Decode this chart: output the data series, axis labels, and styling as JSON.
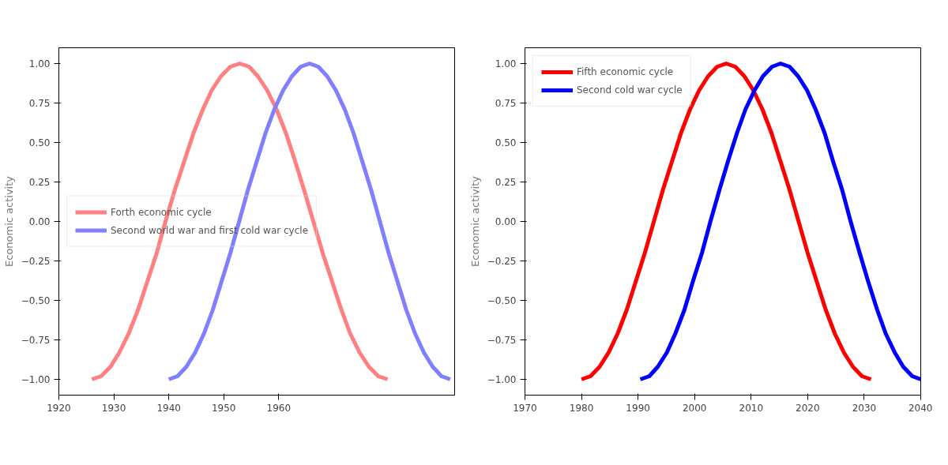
{
  "chart_data": [
    {
      "type": "line",
      "ylabel": "Economic activity",
      "xlim": [
        1920,
        1992
      ],
      "xticks": [
        1920,
        1930,
        1940,
        1950,
        1960
      ],
      "ylim": [
        -1.1,
        1.1
      ],
      "yticks": [
        {
          "value": -1,
          "label": "−1.00"
        },
        {
          "value": -0.75,
          "label": "−0.75"
        },
        {
          "value": -0.5,
          "label": "−0.50"
        },
        {
          "value": -0.25,
          "label": "−0.25"
        },
        {
          "value": 0,
          "label": "0.00"
        },
        {
          "value": 0.25,
          "label": "0.25"
        },
        {
          "value": 0.5,
          "label": "0.50"
        },
        {
          "value": 0.75,
          "label": "0.75"
        },
        {
          "value": 1,
          "label": "1.00"
        }
      ],
      "grid": false,
      "legend": "left",
      "series": [
        {
          "name": "Forth economic cycle",
          "color": "#ff8080",
          "x": [
            1926,
            1927.7,
            1929.4,
            1931,
            1932.7,
            1934.4,
            1936.1,
            1937.8,
            1939.4,
            1941.1,
            1942.8,
            1944.5,
            1946.2,
            1947.8,
            1949.5,
            1951.2,
            1952.9,
            1954.6,
            1956.2,
            1957.9,
            1959.6,
            1961.3,
            1963,
            1964.6,
            1966.3,
            1968,
            1969.7,
            1971.4,
            1973,
            1974.7,
            1976.4,
            1978.1,
            1979.8
          ],
          "values": [
            -1,
            -0.98,
            -0.92,
            -0.83,
            -0.71,
            -0.56,
            -0.38,
            -0.2,
            0,
            0.2,
            0.38,
            0.56,
            0.71,
            0.83,
            0.92,
            0.98,
            1,
            0.98,
            0.92,
            0.83,
            0.71,
            0.56,
            0.38,
            0.2,
            0,
            -0.2,
            -0.38,
            -0.56,
            -0.71,
            -0.83,
            -0.92,
            -0.98,
            -1
          ]
        },
        {
          "name": "Second world war and first cold war cycle",
          "color": "#8080ff",
          "x": [
            1940,
            1941.6,
            1943.2,
            1944.8,
            1946.4,
            1948,
            1949.6,
            1951.2,
            1952.8,
            1954.4,
            1956,
            1957.6,
            1959.2,
            1960.8,
            1962.4,
            1964,
            1965.6,
            1967.2,
            1968.8,
            1970.4,
            1972,
            1973.6,
            1975.2,
            1976.8,
            1978.4,
            1980,
            1981.6,
            1983.2,
            1984.8,
            1986.4,
            1988,
            1989.6,
            1991.2
          ],
          "values": [
            -1,
            -0.98,
            -0.92,
            -0.83,
            -0.71,
            -0.56,
            -0.38,
            -0.2,
            0,
            0.2,
            0.38,
            0.56,
            0.71,
            0.83,
            0.92,
            0.98,
            1,
            0.98,
            0.92,
            0.83,
            0.71,
            0.56,
            0.38,
            0.2,
            0,
            -0.2,
            -0.38,
            -0.56,
            -0.71,
            -0.83,
            -0.92,
            -0.98,
            -1
          ]
        }
      ]
    },
    {
      "type": "line",
      "ylabel": "Economic activity",
      "xlim": [
        1970,
        2040
      ],
      "xticks": [
        1970,
        1980,
        1990,
        2000,
        2010,
        2020,
        2030,
        2040
      ],
      "ylim": [
        -1.1,
        1.1
      ],
      "yticks": [
        {
          "value": -1,
          "label": "−1.00"
        },
        {
          "value": -0.75,
          "label": "−0.75"
        },
        {
          "value": -0.5,
          "label": "−0.50"
        },
        {
          "value": -0.25,
          "label": "−0.25"
        },
        {
          "value": 0,
          "label": "0.00"
        },
        {
          "value": 0.25,
          "label": "0.25"
        },
        {
          "value": 0.5,
          "label": "0.50"
        },
        {
          "value": 0.75,
          "label": "0.75"
        },
        {
          "value": 1,
          "label": "1.00"
        }
      ],
      "grid": false,
      "legend": "top left",
      "series": [
        {
          "name": "Fifth economic cycle",
          "color": "#ff0000",
          "x": [
            1980,
            1981.6,
            1983.2,
            1984.8,
            1986.4,
            1988,
            1989.6,
            1991.2,
            1992.8,
            1994.4,
            1996,
            1997.6,
            1999.2,
            2000.8,
            2002.4,
            2004,
            2005.6,
            2007.2,
            2008.8,
            2010.4,
            2012,
            2013.6,
            2015.2,
            2016.8,
            2018.4,
            2020,
            2021.6,
            2023.2,
            2024.8,
            2026.4,
            2028,
            2029.6,
            2031.2
          ],
          "values": [
            -1,
            -0.98,
            -0.92,
            -0.83,
            -0.71,
            -0.56,
            -0.38,
            -0.2,
            0,
            0.2,
            0.38,
            0.56,
            0.71,
            0.83,
            0.92,
            0.98,
            1,
            0.98,
            0.92,
            0.83,
            0.71,
            0.56,
            0.38,
            0.2,
            0,
            -0.2,
            -0.38,
            -0.56,
            -0.71,
            -0.83,
            -0.92,
            -0.98,
            -1
          ]
        },
        {
          "name": "Second cold war cycle",
          "color": "#0000ff",
          "x": [
            1990.4,
            1992,
            1993.5,
            1995.1,
            1996.6,
            1998.2,
            1999.7,
            2001.3,
            2002.8,
            2004.4,
            2005.9,
            2007.5,
            2009,
            2010.6,
            2012.1,
            2013.7,
            2015.2,
            2016.8,
            2018.3,
            2019.9,
            2021.4,
            2023,
            2024.5,
            2026.1,
            2027.6,
            2029.2,
            2030.7,
            2032.3,
            2033.8,
            2035.4,
            2036.9,
            2038.5,
            2040
          ],
          "values": [
            -1,
            -0.98,
            -0.92,
            -0.83,
            -0.71,
            -0.56,
            -0.38,
            -0.2,
            0,
            0.2,
            0.38,
            0.56,
            0.71,
            0.83,
            0.92,
            0.98,
            1,
            0.98,
            0.92,
            0.83,
            0.71,
            0.56,
            0.38,
            0.2,
            0,
            -0.2,
            -0.38,
            -0.56,
            -0.71,
            -0.83,
            -0.92,
            -0.98,
            -1
          ]
        }
      ]
    }
  ]
}
